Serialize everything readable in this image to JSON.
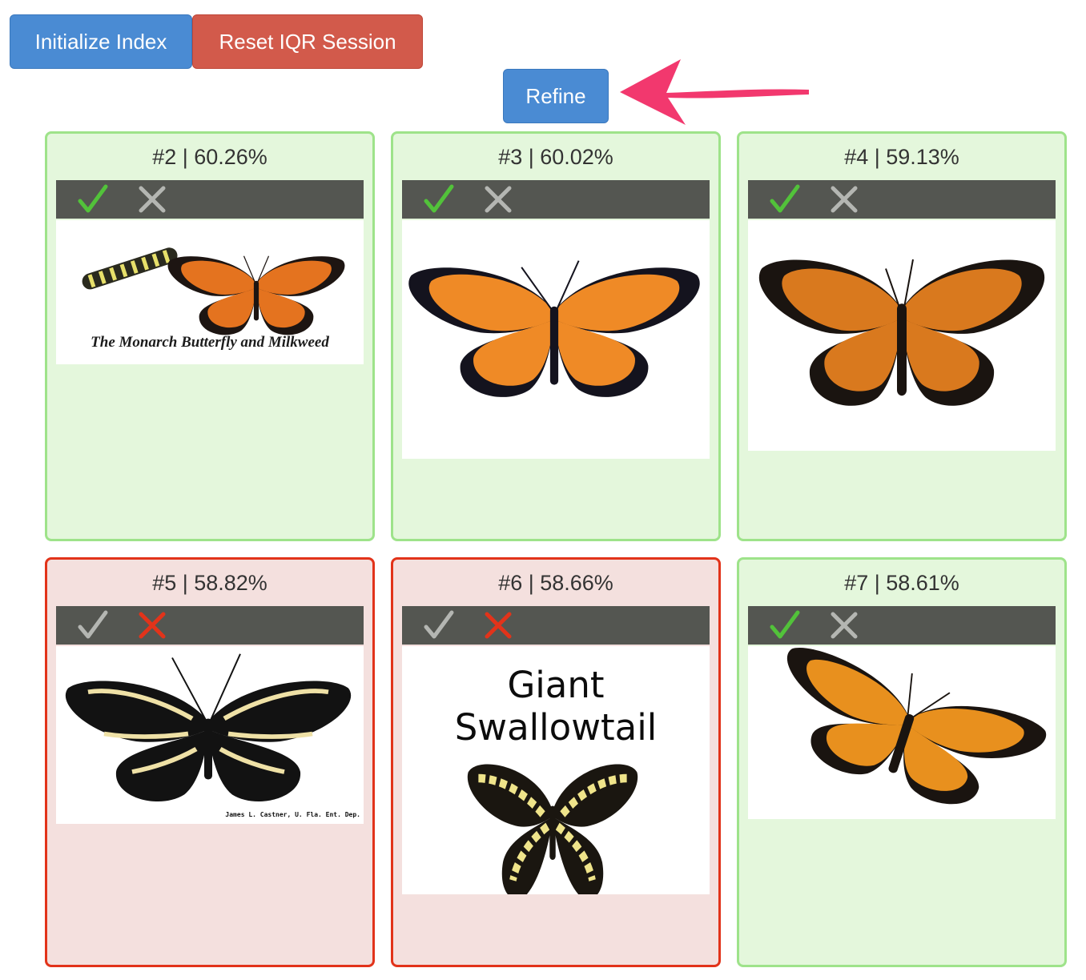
{
  "toolbar": {
    "initialize_label": "Initialize Index",
    "reset_label": "Reset IQR Session",
    "refine_label": "Refine"
  },
  "colors": {
    "primary": "#4a8bd3",
    "danger": "#d25a4b",
    "positive_border": "#9ee38a",
    "positive_bg": "#e4f7dc",
    "negative_border": "#e2331a",
    "negative_bg": "#f4e0de",
    "rating_bar": "#545651",
    "check_active": "#52c23a",
    "x_active": "#e2331a",
    "icon_inactive": "#b4b6b2",
    "annotation_arrow": "#f2386e"
  },
  "results": [
    {
      "title": "#2 | 60.26%",
      "rating": "positive",
      "image": "monarch-butterfly-and-caterpillar",
      "caption": "The Monarch Butterfly and Milkweed"
    },
    {
      "title": "#3 | 60.02%",
      "rating": "positive",
      "image": "monarch-butterfly-illustration",
      "caption": ""
    },
    {
      "title": "#4 | 59.13%",
      "rating": "positive",
      "image": "monarch-butterfly-photo",
      "caption": ""
    },
    {
      "title": "#5 | 58.82%",
      "rating": "negative",
      "image": "zebra-longwing-butterfly",
      "caption": "James L. Castner, U. Fla. Ent. Dep."
    },
    {
      "title": "#6 | 58.66%",
      "rating": "negative",
      "image": "giant-swallowtail-butterfly",
      "caption": "Giant Swallowtail"
    },
    {
      "title": "#7 | 58.61%",
      "rating": "positive",
      "image": "monarch-butterfly-side-view",
      "caption": ""
    }
  ]
}
